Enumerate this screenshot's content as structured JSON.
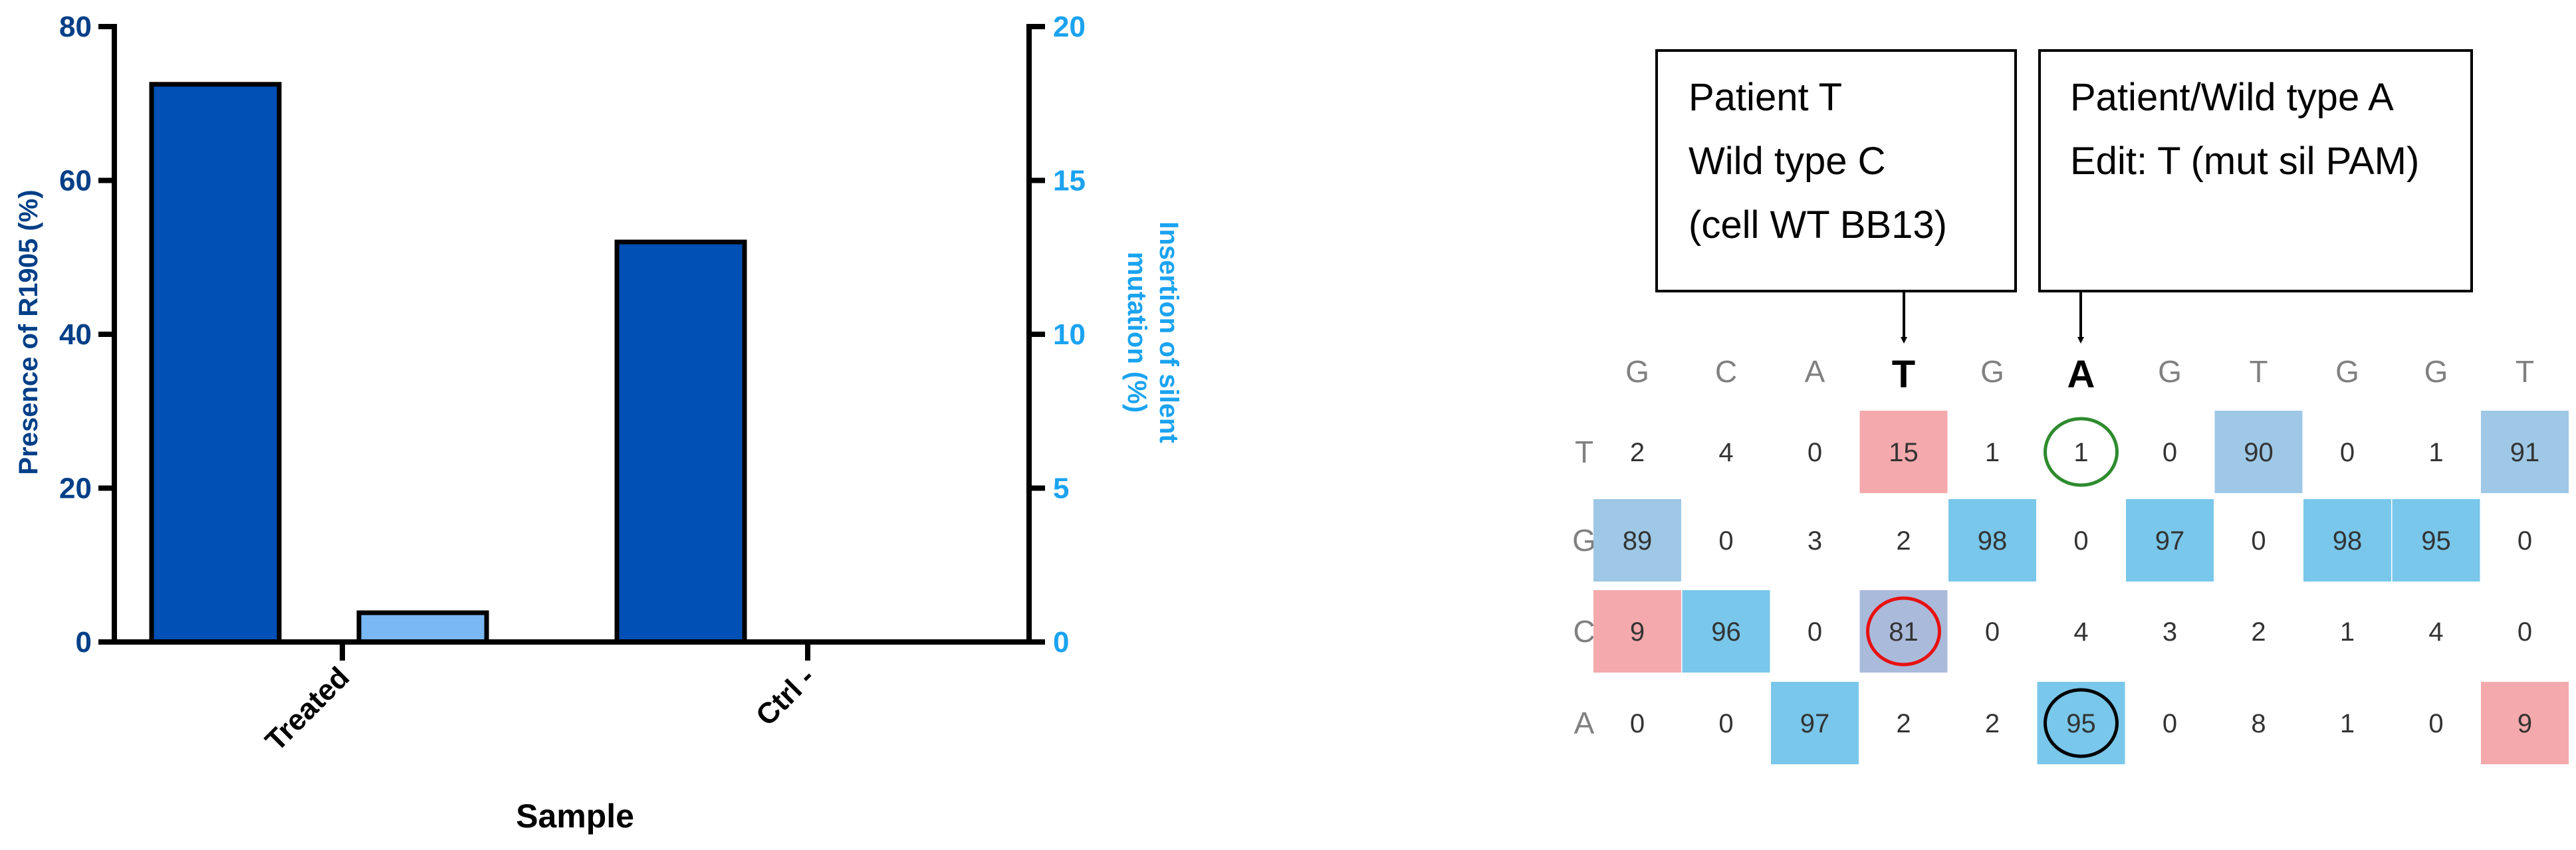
{
  "chart_data": [
    {
      "type": "bar",
      "xlabel": "Sample",
      "categories": [
        "Treated",
        "Ctrl -"
      ],
      "series": [
        {
          "axis": "left",
          "color": "#0050b5",
          "values": [
            72.5,
            52
          ]
        },
        {
          "axis": "right",
          "color": "#7ab8f5",
          "values": [
            0.95,
            0
          ]
        }
      ],
      "ylabel_left": "Presence of R1905 (%)",
      "ylim_left": [
        0,
        80
      ],
      "yticks_left": [
        "0",
        "20",
        "40",
        "60",
        "80"
      ],
      "ylabel_right_lines": [
        "Insertion of silent",
        "mutation (%)"
      ],
      "ylim_right": [
        0,
        20
      ],
      "yticks_right": [
        "0",
        "5",
        "10",
        "15",
        "20"
      ],
      "grid": false,
      "legend": "none"
    },
    {
      "type": "heatmap",
      "columns": [
        "G",
        "C",
        "A",
        "T",
        "G",
        "A",
        "G",
        "T",
        "G",
        "G",
        "T"
      ],
      "bold_columns": [
        3,
        5
      ],
      "rows": [
        "T",
        "G",
        "C",
        "A"
      ],
      "values": [
        [
          "2",
          "4",
          "0",
          "15",
          "1",
          "1",
          "0",
          "90",
          "0",
          "1",
          "91"
        ],
        [
          "89",
          "0",
          "3",
          "2",
          "98",
          "0",
          "97",
          "0",
          "98",
          "95",
          "0"
        ],
        [
          "9",
          "96",
          "0",
          "81",
          "0",
          "4",
          "3",
          "2",
          "1",
          "4",
          "0"
        ],
        [
          "0",
          "0",
          "97",
          "2",
          "2",
          "95",
          "0",
          "8",
          "1",
          "0",
          "9"
        ]
      ],
      "cell_colors": [
        [
          null,
          null,
          null,
          "#f4a9ac",
          null,
          null,
          null,
          "#9ec8e6",
          null,
          null,
          "#9ec8e6"
        ],
        [
          "#9ec8e6",
          null,
          null,
          null,
          "#79c7ea",
          null,
          "#79c7ea",
          null,
          "#79c7ea",
          "#79c7ea",
          null
        ],
        [
          "#f4a9ac",
          "#79c7ea",
          null,
          "#aabadb",
          null,
          null,
          null,
          null,
          null,
          null,
          null
        ],
        [
          null,
          null,
          "#79c7ea",
          null,
          null,
          "#79c7ea",
          null,
          null,
          null,
          null,
          "#f4a9ac"
        ]
      ],
      "circled_cells": [
        {
          "row": 0,
          "col": 5,
          "color": "#2e8b2e"
        },
        {
          "row": 2,
          "col": 3,
          "color": "#e81010"
        },
        {
          "row": 3,
          "col": 5,
          "color": "#000000"
        }
      ],
      "callouts": [
        {
          "lines": [
            "Patient T",
            "Wild type C",
            "(cell WT BB13)"
          ],
          "points_to_col": 3
        },
        {
          "lines": [
            "Patient/Wild type A",
            "Edit: T (mut sil PAM)"
          ],
          "points_to_col": 5
        }
      ]
    }
  ]
}
